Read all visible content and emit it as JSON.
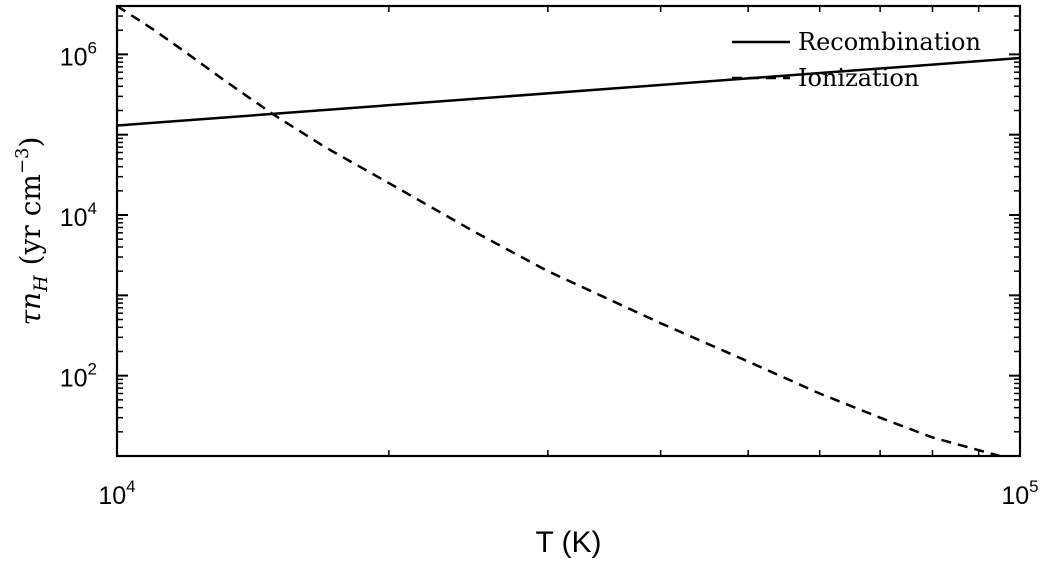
{
  "chart_data": {
    "type": "line",
    "xscale": "log",
    "yscale": "log",
    "xlim": [
      10000,
      100000
    ],
    "ylim": [
      10,
      4000000
    ],
    "xlabel": "T (K)",
    "ylabel": {
      "tau": "τ",
      "n": "n",
      "sub": "H",
      "units_open": "(yr cm",
      "exp": "−3",
      "units_close": ")"
    },
    "xticks": [
      {
        "value": 10000,
        "base": "10",
        "exp": "4"
      },
      {
        "value": 100000,
        "base": "10",
        "exp": "5"
      }
    ],
    "yticks": [
      {
        "value": 100,
        "base": "10",
        "exp": "2"
      },
      {
        "value": 10000,
        "base": "10",
        "exp": "4"
      },
      {
        "value": 1000000,
        "base": "10",
        "exp": "6"
      }
    ],
    "grid": false,
    "legend_position": "top-right",
    "series": [
      {
        "name": "Recombination",
        "style": "solid",
        "color": "#000000",
        "x": [
          10000,
          100000
        ],
        "y": [
          130000,
          900000
        ]
      },
      {
        "name": "Ionization",
        "style": "dashed",
        "color": "#000000",
        "x": [
          10000,
          11000,
          12000,
          13000,
          14000,
          15000,
          17000,
          20000,
          25000,
          30000,
          40000,
          50000,
          60000,
          70000,
          80000,
          95000
        ],
        "y": [
          4000000,
          2000000,
          1000000,
          520000,
          290000,
          170000,
          70000,
          25000,
          6000,
          2000,
          450,
          150,
          60,
          30,
          17,
          10
        ]
      }
    ]
  }
}
